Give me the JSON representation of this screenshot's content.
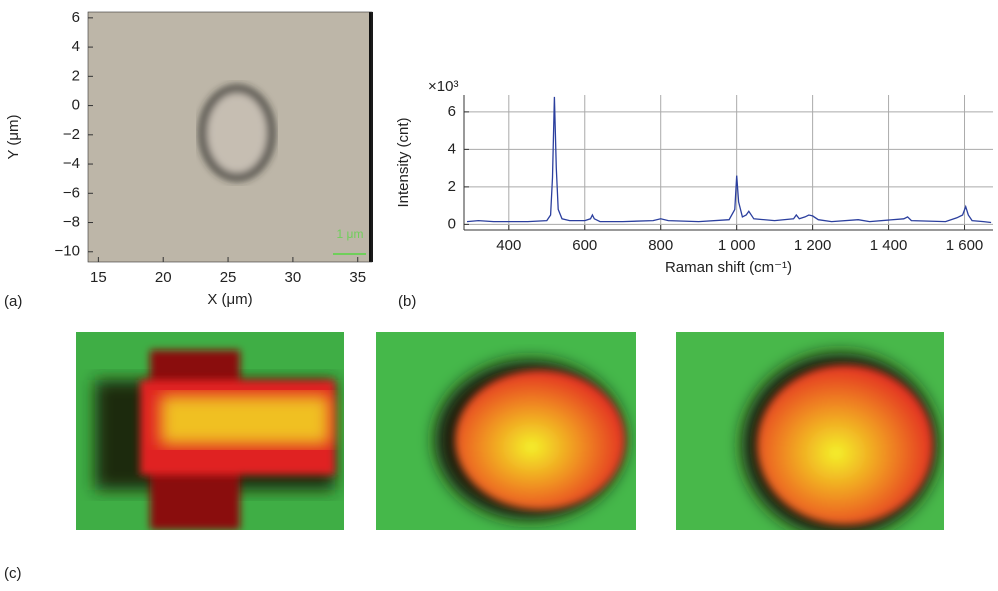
{
  "chart_data": [
    {
      "type": "image",
      "xlabel": "X (μm)",
      "ylabel": "Y (μm)",
      "scale_bar": "1 μm",
      "xlim": [
        14.2,
        36.1
      ],
      "xticks": [
        15,
        20,
        25,
        30,
        35
      ],
      "ylim": [
        -10.7,
        6.4
      ],
      "yticks": [
        {
          "value": -10,
          "label": "−10"
        },
        {
          "value": -8,
          "label": "−8"
        },
        {
          "value": -6,
          "label": "−6"
        },
        {
          "value": -4,
          "label": "−4"
        },
        {
          "value": -2,
          "label": "−2"
        },
        0,
        2,
        4,
        6
      ]
    },
    {
      "type": "line",
      "xlabel": "Raman shift (cm⁻¹)",
      "ylabel": "Intensity (cnt)",
      "y_multiplier": "×10³",
      "grid": true,
      "xlim": [
        282,
        1675
      ],
      "xticks": [
        400,
        600,
        800,
        {
          "value": 1000,
          "label": "1 000"
        },
        {
          "value": 1200,
          "label": "1 200"
        },
        {
          "value": 1400,
          "label": "1 400"
        },
        {
          "value": 1600,
          "label": "1 600"
        }
      ],
      "ylim": [
        -0.3,
        6.9
      ],
      "yticks": [
        0,
        2,
        4,
        6
      ],
      "series": [
        {
          "color": "#2b3f9e",
          "x": [
            290,
            320,
            360,
            400,
            450,
            500,
            510,
            515,
            520,
            525,
            530,
            540,
            560,
            600,
            615,
            620,
            625,
            640,
            700,
            780,
            800,
            820,
            900,
            980,
            995,
            1000,
            1005,
            1015,
            1025,
            1032,
            1045,
            1100,
            1150,
            1157,
            1165,
            1180,
            1190,
            1200,
            1215,
            1250,
            1320,
            1350,
            1440,
            1450,
            1460,
            1550,
            1580,
            1595,
            1603,
            1610,
            1620,
            1650,
            1670
          ],
          "values": [
            0.15,
            0.2,
            0.15,
            0.15,
            0.15,
            0.2,
            0.5,
            2.5,
            6.8,
            3.0,
            0.8,
            0.3,
            0.2,
            0.2,
            0.3,
            0.5,
            0.3,
            0.15,
            0.15,
            0.2,
            0.3,
            0.2,
            0.15,
            0.25,
            0.8,
            2.6,
            1.2,
            0.4,
            0.5,
            0.7,
            0.3,
            0.2,
            0.3,
            0.5,
            0.3,
            0.4,
            0.5,
            0.45,
            0.25,
            0.15,
            0.25,
            0.15,
            0.3,
            0.4,
            0.2,
            0.15,
            0.35,
            0.5,
            0.95,
            0.5,
            0.2,
            0.15,
            0.1
          ]
        }
      ]
    }
  ],
  "panel_labels": [
    "(a)",
    "(b)",
    "(c)"
  ]
}
